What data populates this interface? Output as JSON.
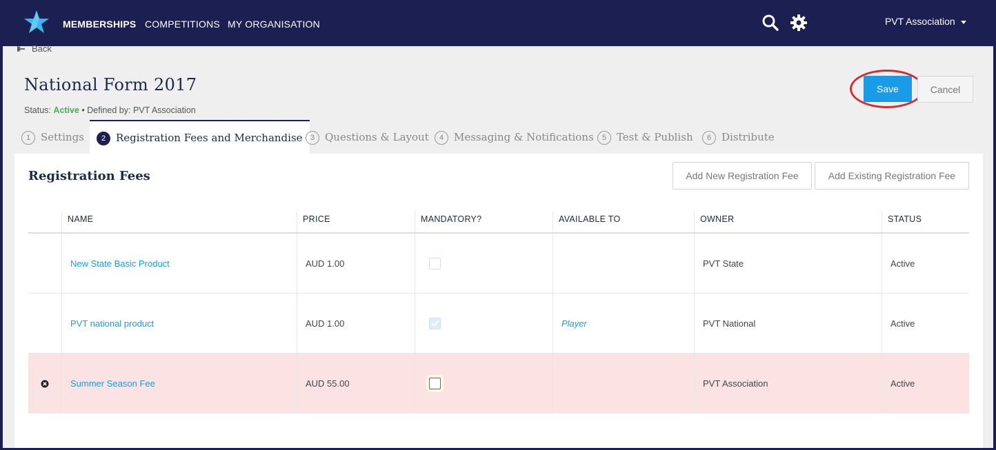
{
  "nav": {
    "items": [
      "MEMBERSHIPS",
      "COMPETITIONS",
      "MY ORGANISATION"
    ],
    "org_name": "PVT Association"
  },
  "back_label": "Back",
  "page": {
    "title": "National Form 2017",
    "status_prefix": "Status: ",
    "status_value": "Active",
    "status_suffix": " • Defined by: PVT Association"
  },
  "actions": {
    "save": "Save",
    "cancel": "Cancel"
  },
  "tabs": [
    {
      "num": "1",
      "label": "Settings",
      "active": false
    },
    {
      "num": "2",
      "label": "Registration Fees and Merchandise",
      "active": true
    },
    {
      "num": "3",
      "label": "Questions & Layout",
      "active": false
    },
    {
      "num": "4",
      "label": "Messaging & Notifications",
      "active": false
    },
    {
      "num": "5",
      "label": "Test & Publish",
      "active": false
    },
    {
      "num": "6",
      "label": "Distribute",
      "active": false
    }
  ],
  "section": {
    "title": "Registration Fees",
    "add_new": "Add New Registration Fee",
    "add_existing": "Add Existing Registration Fee"
  },
  "table": {
    "columns": [
      "NAME",
      "PRICE",
      "MANDATORY?",
      "AVAILABLE TO",
      "OWNER",
      "STATUS"
    ],
    "rows": [
      {
        "name": "New State Basic Product",
        "price": "AUD 1.00",
        "mandatory": false,
        "available_to": "",
        "owner": "PVT State",
        "status": "Active"
      },
      {
        "name": "PVT national product",
        "price": "AUD 1.00",
        "mandatory": true,
        "available_to": "Player",
        "owner": "PVT National",
        "status": "Active"
      },
      {
        "name": "Summer Season Fee",
        "price": "AUD 55.00",
        "mandatory": false,
        "available_to": "",
        "owner": "PVT Association",
        "status": "Active"
      }
    ]
  },
  "colors": {
    "navy": "#1b1f52",
    "accent": "#1a9be8",
    "active_green": "#3bb54a",
    "highlight_row": "#fce3e3",
    "annotation_ring": "#d12f2f"
  }
}
